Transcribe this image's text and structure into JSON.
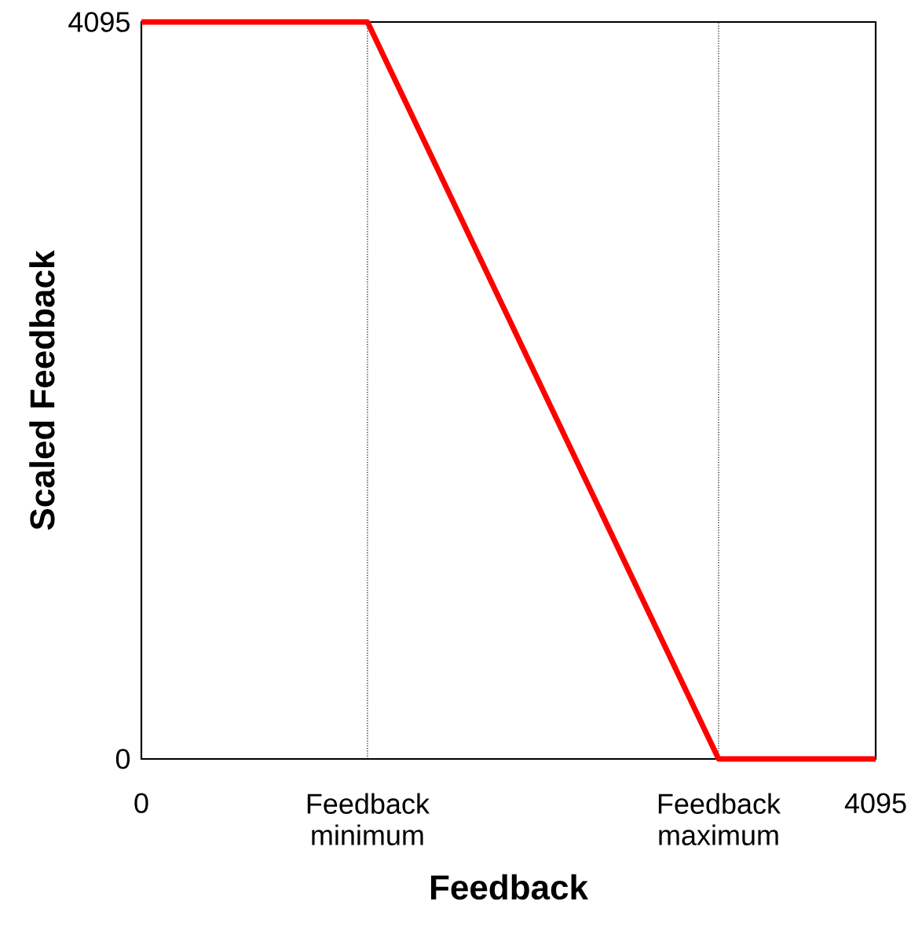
{
  "chart_data": {
    "type": "line",
    "xlabel": "Feedback",
    "ylabel": "Scaled Feedback",
    "x": [
      0,
      1261,
      3219,
      4095
    ],
    "series": [
      {
        "color": "#ff0000",
        "values": [
          4095,
          4095,
          0,
          0
        ]
      }
    ],
    "xlim": [
      0,
      4095
    ],
    "ylim": [
      0,
      4095
    ],
    "xticks": [
      0,
      {
        "value": 1261,
        "label": "Feedback minimum"
      },
      {
        "value": 3219,
        "label": "Feedback maximum"
      },
      4095
    ],
    "yticks": [
      0,
      4095
    ],
    "ref_lines": [
      {
        "axis": "x",
        "value": 1261,
        "color": "#000000",
        "line_style": "dotted"
      },
      {
        "axis": "x",
        "value": 3219,
        "color": "#000000",
        "line_style": "dotted"
      }
    ],
    "grid": false,
    "marker": "none",
    "line_style": "solid"
  }
}
